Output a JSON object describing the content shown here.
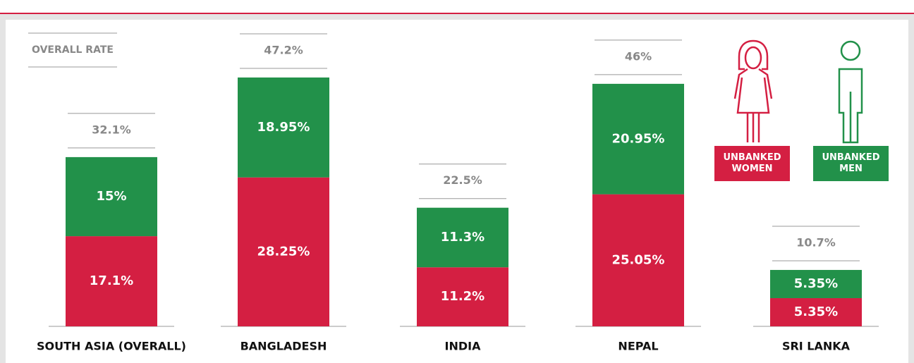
{
  "chart_data": {
    "type": "stacked-bar",
    "annotation": "OVERALL RATE",
    "categories": [
      "SOUTH ASIA (OVERALL)",
      "BANGLADESH",
      "INDIA",
      "NEPAL",
      "SRI LANKA"
    ],
    "series": [
      {
        "name": "UNBANKED WOMEN",
        "color": "#d41f42",
        "values": [
          17.1,
          28.25,
          11.2,
          25.05,
          5.35
        ],
        "value_labels": [
          "17.1%",
          "28.25%",
          "11.2%",
          "25.05%",
          "5.35%"
        ]
      },
      {
        "name": "UNBANKED MEN",
        "color": "#22914a",
        "values": [
          15,
          18.95,
          11.3,
          20.95,
          5.35
        ],
        "value_labels": [
          "15%",
          "18.95%",
          "11.3%",
          "20.95%",
          "5.35%"
        ]
      }
    ],
    "totals": {
      "values": [
        32.1,
        47.2,
        22.5,
        46,
        10.7
      ],
      "value_labels": [
        "32.1%",
        "47.2%",
        "22.5%",
        "46%",
        "10.7%"
      ]
    },
    "ylim": [
      0,
      50
    ]
  }
}
